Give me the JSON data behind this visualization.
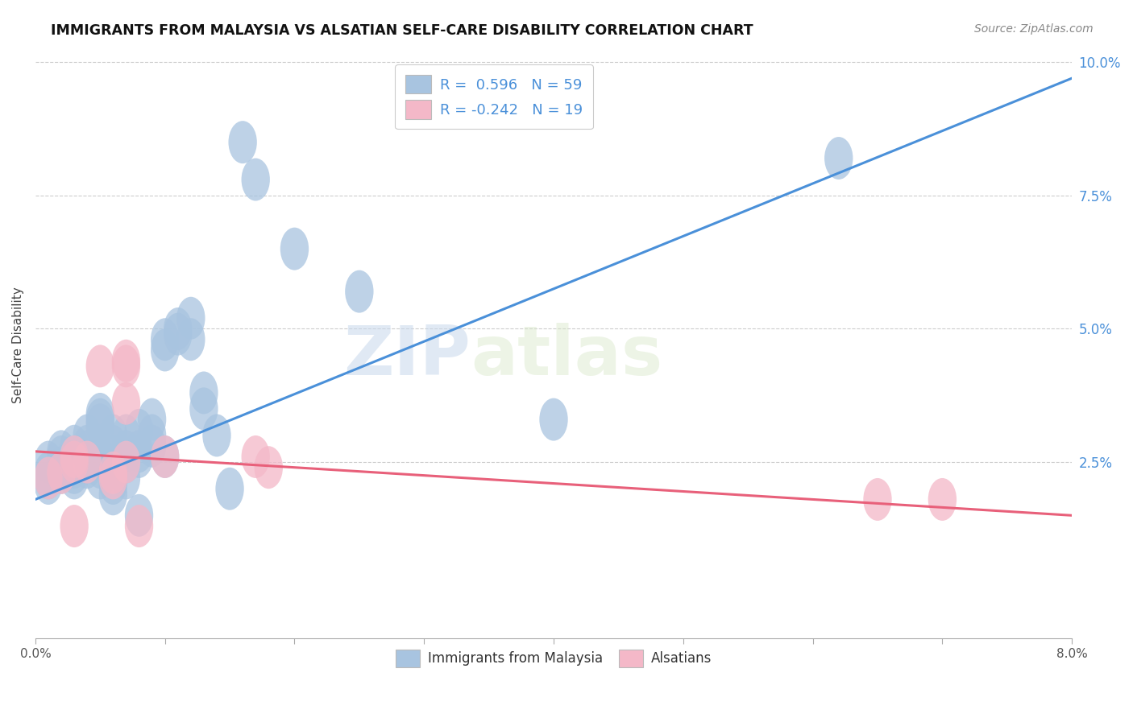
{
  "title": "IMMIGRANTS FROM MALAYSIA VS ALSATIAN SELF-CARE DISABILITY CORRELATION CHART",
  "source": "Source: ZipAtlas.com",
  "ylabel": "Self-Care Disability",
  "xmin": 0.0,
  "xmax": 0.08,
  "ymin": -0.008,
  "ymax": 0.102,
  "yticks": [
    0.025,
    0.05,
    0.075,
    0.1
  ],
  "ytick_labels": [
    "2.5%",
    "5.0%",
    "7.5%",
    "10.0%"
  ],
  "xticks": [
    0.0,
    0.01,
    0.02,
    0.03,
    0.04,
    0.05,
    0.06,
    0.07,
    0.08
  ],
  "xtick_labels": [
    "0.0%",
    "",
    "",
    "",
    "",
    "",
    "",
    "",
    "8.0%"
  ],
  "blue_color": "#a8c4e0",
  "pink_color": "#f4b8c8",
  "blue_line_color": "#4a90d9",
  "pink_line_color": "#e8607a",
  "R_blue": 0.596,
  "N_blue": 59,
  "R_pink": -0.242,
  "N_pink": 19,
  "watermark_zip": "ZIP",
  "watermark_atlas": "atlas",
  "blue_scatter": [
    [
      0.001,
      0.025
    ],
    [
      0.001,
      0.022
    ],
    [
      0.001,
      0.023
    ],
    [
      0.001,
      0.021
    ],
    [
      0.002,
      0.027
    ],
    [
      0.002,
      0.024
    ],
    [
      0.002,
      0.026
    ],
    [
      0.002,
      0.023
    ],
    [
      0.003,
      0.028
    ],
    [
      0.003,
      0.025
    ],
    [
      0.003,
      0.026
    ],
    [
      0.003,
      0.024
    ],
    [
      0.003,
      0.022
    ],
    [
      0.003,
      0.023
    ],
    [
      0.004,
      0.027
    ],
    [
      0.004,
      0.025
    ],
    [
      0.004,
      0.024
    ],
    [
      0.004,
      0.03
    ],
    [
      0.004,
      0.028
    ],
    [
      0.005,
      0.026
    ],
    [
      0.005,
      0.032
    ],
    [
      0.005,
      0.033
    ],
    [
      0.005,
      0.034
    ],
    [
      0.005,
      0.024
    ],
    [
      0.005,
      0.022
    ],
    [
      0.006,
      0.028
    ],
    [
      0.006,
      0.03
    ],
    [
      0.006,
      0.026
    ],
    [
      0.006,
      0.023
    ],
    [
      0.006,
      0.021
    ],
    [
      0.006,
      0.019
    ],
    [
      0.007,
      0.03
    ],
    [
      0.007,
      0.027
    ],
    [
      0.007,
      0.025
    ],
    [
      0.007,
      0.022
    ],
    [
      0.008,
      0.031
    ],
    [
      0.008,
      0.027
    ],
    [
      0.008,
      0.026
    ],
    [
      0.008,
      0.015
    ],
    [
      0.009,
      0.033
    ],
    [
      0.009,
      0.03
    ],
    [
      0.009,
      0.028
    ],
    [
      0.01,
      0.048
    ],
    [
      0.01,
      0.046
    ],
    [
      0.01,
      0.026
    ],
    [
      0.011,
      0.05
    ],
    [
      0.011,
      0.049
    ],
    [
      0.012,
      0.052
    ],
    [
      0.012,
      0.048
    ],
    [
      0.013,
      0.038
    ],
    [
      0.013,
      0.035
    ],
    [
      0.014,
      0.03
    ],
    [
      0.015,
      0.02
    ],
    [
      0.016,
      0.085
    ],
    [
      0.017,
      0.078
    ],
    [
      0.02,
      0.065
    ],
    [
      0.025,
      0.057
    ],
    [
      0.04,
      0.033
    ],
    [
      0.062,
      0.082
    ]
  ],
  "pink_scatter": [
    [
      0.001,
      0.022
    ],
    [
      0.002,
      0.023
    ],
    [
      0.003,
      0.013
    ],
    [
      0.003,
      0.025
    ],
    [
      0.003,
      0.026
    ],
    [
      0.004,
      0.025
    ],
    [
      0.005,
      0.043
    ],
    [
      0.006,
      0.023
    ],
    [
      0.006,
      0.022
    ],
    [
      0.007,
      0.043
    ],
    [
      0.007,
      0.044
    ],
    [
      0.007,
      0.025
    ],
    [
      0.007,
      0.036
    ],
    [
      0.008,
      0.013
    ],
    [
      0.01,
      0.026
    ],
    [
      0.017,
      0.026
    ],
    [
      0.018,
      0.024
    ],
    [
      0.065,
      0.018
    ],
    [
      0.07,
      0.018
    ]
  ],
  "blue_trend_x": [
    0.0,
    0.08
  ],
  "blue_trend_y": [
    0.018,
    0.097
  ],
  "pink_trend_x": [
    0.0,
    0.08
  ],
  "pink_trend_y": [
    0.027,
    0.015
  ]
}
